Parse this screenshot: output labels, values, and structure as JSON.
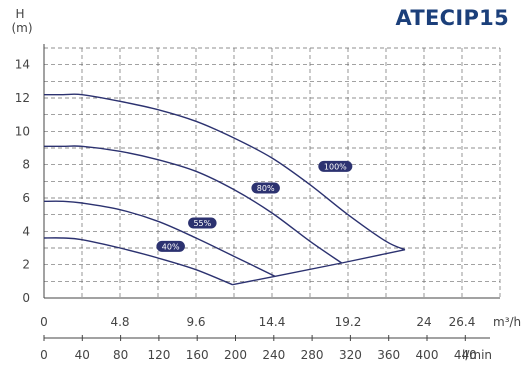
{
  "chart_data": {
    "type": "line",
    "title": "ATECIP15",
    "ylabel": "H",
    "yunit": "(m)",
    "xunit_top": "m³/h",
    "xunit_bottom": "l/min",
    "ylim": [
      0,
      15
    ],
    "xlim": [
      0,
      28.8
    ],
    "yticks": [
      "0",
      "2",
      "4",
      "6",
      "8",
      "10",
      "12",
      "14"
    ],
    "xticks_top": [
      {
        "value": 0,
        "label": "0"
      },
      {
        "value": 4.8,
        "label": "4.8"
      },
      {
        "value": 9.6,
        "label": "9.6"
      },
      {
        "value": 14.4,
        "label": "14.4"
      },
      {
        "value": 19.2,
        "label": "19.2"
      },
      {
        "value": 24,
        "label": "24"
      },
      {
        "value": 26.4,
        "label": "26.4"
      }
    ],
    "xticks_bottom": [
      "0",
      "40",
      "80",
      "120",
      "160",
      "200",
      "240",
      "280",
      "320",
      "360",
      "400",
      "440"
    ],
    "grid": true,
    "series": [
      {
        "name": "100%",
        "x": [
          0,
          1.2,
          2.4,
          4.8,
          7.2,
          9.6,
          12.0,
          14.4,
          16.8,
          19.2,
          21.6,
          22.8
        ],
        "y": [
          12.2,
          12.2,
          12.2,
          11.8,
          11.3,
          10.6,
          9.6,
          8.4,
          6.8,
          5.0,
          3.4,
          2.9
        ]
      },
      {
        "name": "80%",
        "x": [
          0,
          1.2,
          2.4,
          4.8,
          7.2,
          9.6,
          12.0,
          14.4,
          16.8,
          18.8
        ],
        "y": [
          9.1,
          9.1,
          9.1,
          8.8,
          8.3,
          7.6,
          6.5,
          5.1,
          3.4,
          2.1
        ]
      },
      {
        "name": "55%",
        "x": [
          0,
          1.2,
          2.4,
          4.8,
          7.2,
          9.6,
          12.0,
          14.6
        ],
        "y": [
          5.8,
          5.8,
          5.7,
          5.3,
          4.6,
          3.6,
          2.5,
          1.3
        ]
      },
      {
        "name": "40%",
        "x": [
          0,
          1.2,
          2.4,
          4.8,
          7.2,
          9.6,
          11.9
        ],
        "y": [
          3.6,
          3.6,
          3.5,
          3.0,
          2.4,
          1.7,
          0.8
        ]
      }
    ],
    "boundary": {
      "x": [
        11.9,
        14.6,
        18.8,
        22.8
      ],
      "y": [
        0.8,
        1.3,
        2.1,
        2.9
      ]
    }
  }
}
